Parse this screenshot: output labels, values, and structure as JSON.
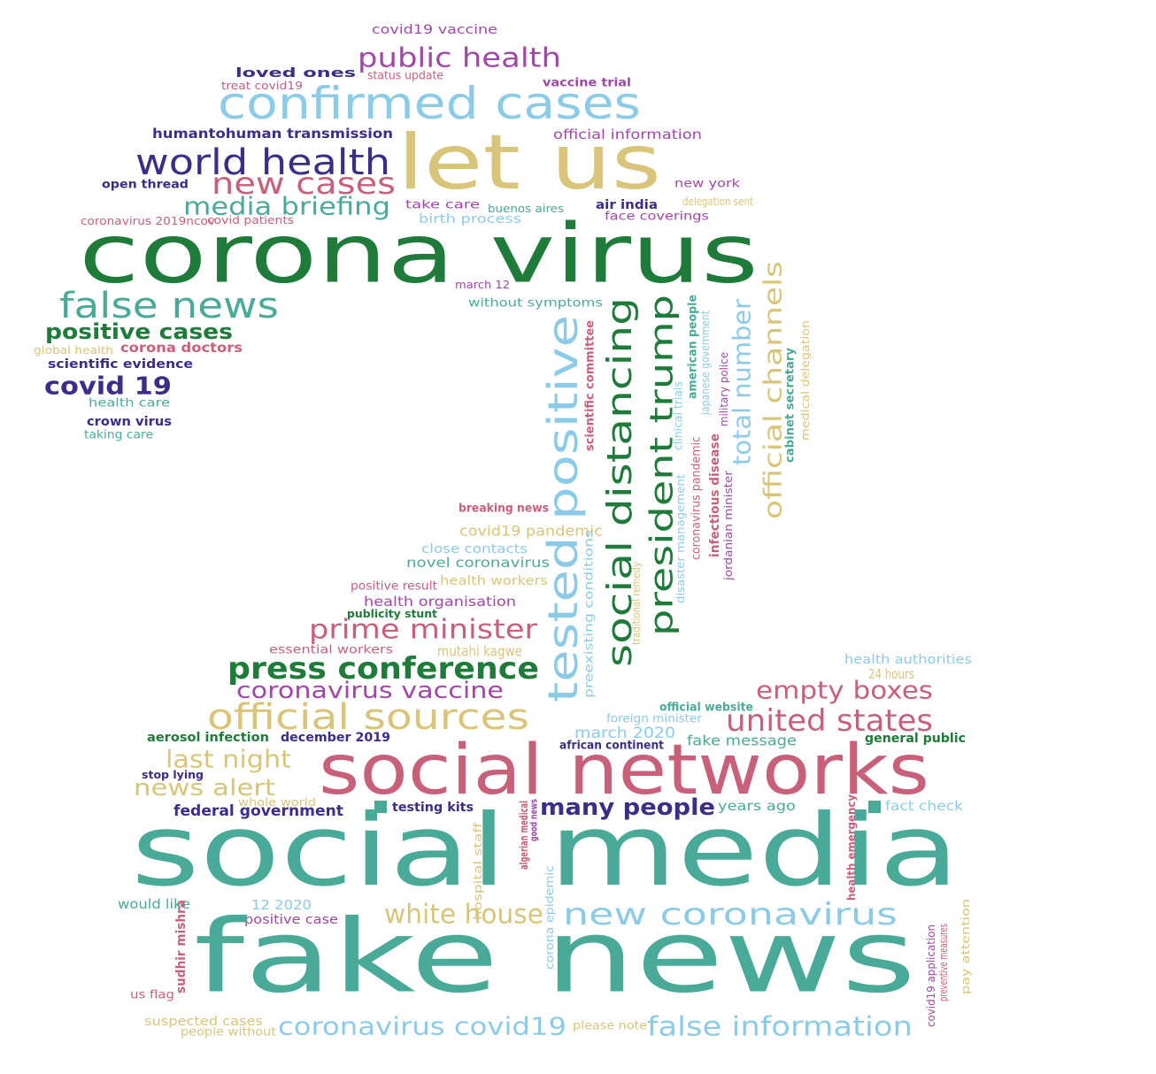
{
  "colors": {
    "green": "#1e7b3a",
    "teal": "#4aaa98",
    "sky": "#8ccbe8",
    "purple": "#a047a8",
    "navy": "#3a2e8a",
    "rose": "#c9607a",
    "gold": "#d8c57a",
    "mint": "#5bbf9c"
  },
  "words": [
    {
      "text": "covid19 vaccine",
      "color": "purple"
    },
    {
      "text": "public health",
      "color": "purple"
    },
    {
      "text": "loved ones",
      "color": "navy"
    },
    {
      "text": "treat covid19",
      "color": "rose"
    },
    {
      "text": "status update",
      "color": "rose"
    },
    {
      "text": "vaccine trial",
      "color": "purple"
    },
    {
      "text": "confirmed cases",
      "color": "sky"
    },
    {
      "text": "humantohuman transmission",
      "color": "navy"
    },
    {
      "text": "official information",
      "color": "purple"
    },
    {
      "text": "let us",
      "color": "gold"
    },
    {
      "text": "world health",
      "color": "navy"
    },
    {
      "text": "new cases",
      "color": "rose"
    },
    {
      "text": "open thread",
      "color": "navy"
    },
    {
      "text": "new york",
      "color": "purple"
    },
    {
      "text": "media briefing",
      "color": "teal"
    },
    {
      "text": "take care",
      "color": "purple"
    },
    {
      "text": "buenos aires",
      "color": "teal"
    },
    {
      "text": "air india",
      "color": "navy"
    },
    {
      "text": "delegation sent",
      "color": "gold"
    },
    {
      "text": "coronavirus 2019ncov",
      "color": "rose"
    },
    {
      "text": "covid patients",
      "color": "rose"
    },
    {
      "text": "birth process",
      "color": "sky"
    },
    {
      "text": "face coverings",
      "color": "purple"
    },
    {
      "text": "corona virus",
      "color": "green"
    },
    {
      "text": "march 12",
      "color": "purple"
    },
    {
      "text": "false news",
      "color": "teal"
    },
    {
      "text": "without symptoms",
      "color": "teal"
    },
    {
      "text": "positive cases",
      "color": "green"
    },
    {
      "text": "global health",
      "color": "gold"
    },
    {
      "text": "corona doctors",
      "color": "rose"
    },
    {
      "text": "scientific evidence",
      "color": "navy"
    },
    {
      "text": "covid 19",
      "color": "navy"
    },
    {
      "text": "health care",
      "color": "teal"
    },
    {
      "text": "crown virus",
      "color": "navy"
    },
    {
      "text": "taking care",
      "color": "teal"
    },
    {
      "text": "tested positive",
      "color": "sky"
    },
    {
      "text": "scientific committee",
      "color": "rose"
    },
    {
      "text": "social distancing",
      "color": "green"
    },
    {
      "text": "president trump",
      "color": "green"
    },
    {
      "text": "clinical trials",
      "color": "sky"
    },
    {
      "text": "american people",
      "color": "teal"
    },
    {
      "text": "disaster management",
      "color": "sky"
    },
    {
      "text": "coronavirus pandemic",
      "color": "rose"
    },
    {
      "text": "japanese government",
      "color": "sky"
    },
    {
      "text": "infectious disease",
      "color": "rose"
    },
    {
      "text": "military police",
      "color": "purple"
    },
    {
      "text": "jordanian minister",
      "color": "purple"
    },
    {
      "text": "total number",
      "color": "sky"
    },
    {
      "text": "official channels",
      "color": "gold"
    },
    {
      "text": "cabinet secretary",
      "color": "teal"
    },
    {
      "text": "medical delegation",
      "color": "gold"
    },
    {
      "text": "breaking news",
      "color": "rose"
    },
    {
      "text": "covid19 pandemic",
      "color": "gold"
    },
    {
      "text": "close contacts",
      "color": "sky"
    },
    {
      "text": "novel coronavirus",
      "color": "teal"
    },
    {
      "text": "positive result",
      "color": "rose"
    },
    {
      "text": "health workers",
      "color": "gold"
    },
    {
      "text": "health organisation",
      "color": "purple"
    },
    {
      "text": "publicity stunt",
      "color": "green"
    },
    {
      "text": "preexisting conditions",
      "color": "sky"
    },
    {
      "text": "traditional remedy",
      "color": "gold"
    },
    {
      "text": "prime minister",
      "color": "rose"
    },
    {
      "text": "essential workers",
      "color": "rose"
    },
    {
      "text": "mutahi kagwe",
      "color": "gold"
    },
    {
      "text": "press conference",
      "color": "green"
    },
    {
      "text": "coronavirus vaccine",
      "color": "purple"
    },
    {
      "text": "health authorities",
      "color": "sky"
    },
    {
      "text": "24 hours",
      "color": "gold"
    },
    {
      "text": "empty boxes",
      "color": "rose"
    },
    {
      "text": "official sources",
      "color": "gold"
    },
    {
      "text": "official website",
      "color": "teal"
    },
    {
      "text": "foreign minister",
      "color": "sky"
    },
    {
      "text": "united states",
      "color": "rose"
    },
    {
      "text": "aerosol infection",
      "color": "green"
    },
    {
      "text": "december 2019",
      "color": "navy"
    },
    {
      "text": "march 2020",
      "color": "sky"
    },
    {
      "text": "african continent",
      "color": "navy"
    },
    {
      "text": "fake message",
      "color": "teal"
    },
    {
      "text": "general public",
      "color": "green"
    },
    {
      "text": "last night",
      "color": "gold"
    },
    {
      "text": "social networks",
      "color": "rose"
    },
    {
      "text": "stop lying",
      "color": "navy"
    },
    {
      "text": "news alert",
      "color": "gold"
    },
    {
      "text": "whole world",
      "color": "gold"
    },
    {
      "text": "federal government",
      "color": "navy"
    },
    {
      "text": "testing kits",
      "color": "navy"
    },
    {
      "text": "many people",
      "color": "navy"
    },
    {
      "text": "years ago",
      "color": "teal"
    },
    {
      "text": "fact check",
      "color": "sky"
    },
    {
      "text": "hospital staff",
      "color": "gold"
    },
    {
      "text": "algerian medical",
      "color": "rose"
    },
    {
      "text": "good news",
      "color": "purple"
    },
    {
      "text": "health emergency",
      "color": "rose"
    },
    {
      "text": "social media",
      "color": "teal"
    },
    {
      "text": "would like",
      "color": "teal"
    },
    {
      "text": "12 2020",
      "color": "sky"
    },
    {
      "text": "corona epidemic",
      "color": "sky"
    },
    {
      "text": "sudhir mishra",
      "color": "rose"
    },
    {
      "text": "positive case",
      "color": "purple"
    },
    {
      "text": "white house",
      "color": "gold"
    },
    {
      "text": "new coronavirus",
      "color": "sky"
    },
    {
      "text": "fake news",
      "color": "teal"
    },
    {
      "text": "us flag",
      "color": "rose"
    },
    {
      "text": "covid19 application",
      "color": "purple"
    },
    {
      "text": "preventive measures",
      "color": "rose"
    },
    {
      "text": "pay attention",
      "color": "gold"
    },
    {
      "text": "suspected cases",
      "color": "gold"
    },
    {
      "text": "people without",
      "color": "gold"
    },
    {
      "text": "coronavirus covid19",
      "color": "sky"
    },
    {
      "text": "please note",
      "color": "gold"
    },
    {
      "text": "false information",
      "color": "sky"
    }
  ]
}
